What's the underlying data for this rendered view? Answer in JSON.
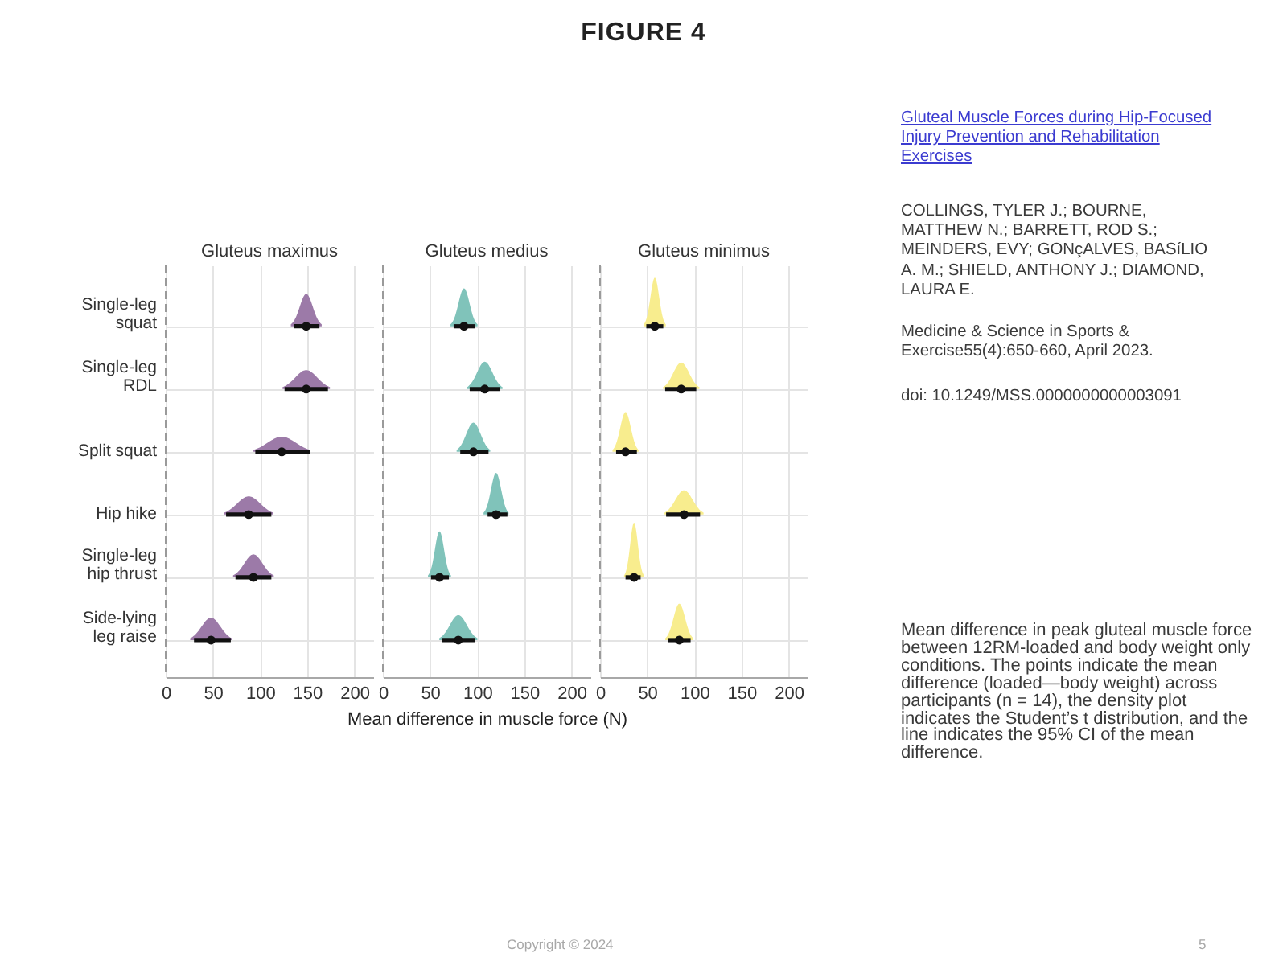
{
  "chart_data": [
    {
      "type": "other",
      "title": "FIGURE 4",
      "annotations": [
        "Gluteal Muscle Forces during Hip-Focused Injury Prevention and Rehabilitation Exercises",
        "COLLINGS, TYLER J.; BOURNE, MATTHEW N.; BARRETT, ROD S.; MEINDERS, EVY; GONçALVES, BASíLIO A. M.; SHIELD, ANTHONY J.; DIAMOND, LAURA E.",
        "Medicine & Science in Sports & Exercise55(4):650-660, April 2023.",
        "doi: 10.1249/MSS.0000000000003091",
        "Mean difference in peak gluteal muscle force between 12RM-loaded and body weight only conditions. The points indicate the mean difference (loaded—body weight) across participants (n = 14), the density plot indicates the Student’s t distribution, and the line indicates the 95% CI of the mean difference.",
        "Copyright © 2024",
        "5"
      ]
    },
    {
      "type": "scatter",
      "title": "Gluteus maximus",
      "orientation": "horizontal",
      "color": "#9c7aa8",
      "categories": [
        "Single-leg squat",
        "Single-leg RDL",
        "Split squat",
        "Hip hike",
        "Single-leg hip thrust",
        "Side-lying leg raise"
      ],
      "series": [
        {
          "color": "#111111",
          "values": [
            149,
            149,
            123,
            88,
            93,
            48
          ],
          "errors": [
            [
              136,
              163
            ],
            [
              126,
              172
            ],
            [
              95,
              153
            ],
            [
              64,
              112
            ],
            [
              74,
              112
            ],
            [
              30,
              69
            ]
          ]
        }
      ],
      "xlim": [
        0,
        220
      ],
      "xticks": [
        0,
        50,
        100,
        150,
        200
      ],
      "grid": true,
      "marker": "circle",
      "ref_lines": [
        {
          "axis": "x",
          "value": 0,
          "line_style": "dashed"
        }
      ]
    },
    {
      "type": "scatter",
      "title": "Gluteus medius",
      "orientation": "horizontal",
      "color": "#80c3ba",
      "xlabel": "Mean difference in muscle force (N)",
      "categories": [
        null,
        null,
        null,
        null,
        null,
        null
      ],
      "series": [
        {
          "color": "#111111",
          "values": [
            86,
            108,
            96,
            120,
            60,
            80
          ],
          "errors": [
            [
              75,
              98
            ],
            [
              92,
              124
            ],
            [
              82,
              112
            ],
            [
              111,
              132
            ],
            [
              51,
              70
            ],
            [
              63,
              98
            ]
          ]
        }
      ],
      "xlim": [
        0,
        220
      ],
      "xticks": [
        0,
        50,
        100,
        150,
        200
      ],
      "grid": true,
      "marker": "circle",
      "ref_lines": [
        {
          "axis": "x",
          "value": 0,
          "line_style": "dashed"
        }
      ]
    },
    {
      "type": "scatter",
      "title": "Gluteus minimus",
      "orientation": "horizontal",
      "color": "#f8ed8e",
      "categories": [
        null,
        null,
        null,
        null,
        null,
        null
      ],
      "series": [
        {
          "color": "#111111",
          "values": [
            58,
            86,
            27,
            89,
            36,
            84
          ],
          "errors": [
            [
              49,
              67
            ],
            [
              69,
              102
            ],
            [
              17,
              39
            ],
            [
              70,
              106
            ],
            [
              27,
              43
            ],
            [
              72,
              96
            ]
          ]
        }
      ],
      "xlim": [
        0,
        220
      ],
      "xticks": [
        0,
        50,
        100,
        150,
        200
      ],
      "grid": true,
      "marker": "circle",
      "ref_lines": [
        {
          "axis": "x",
          "value": 0,
          "line_style": "dashed"
        }
      ]
    }
  ]
}
